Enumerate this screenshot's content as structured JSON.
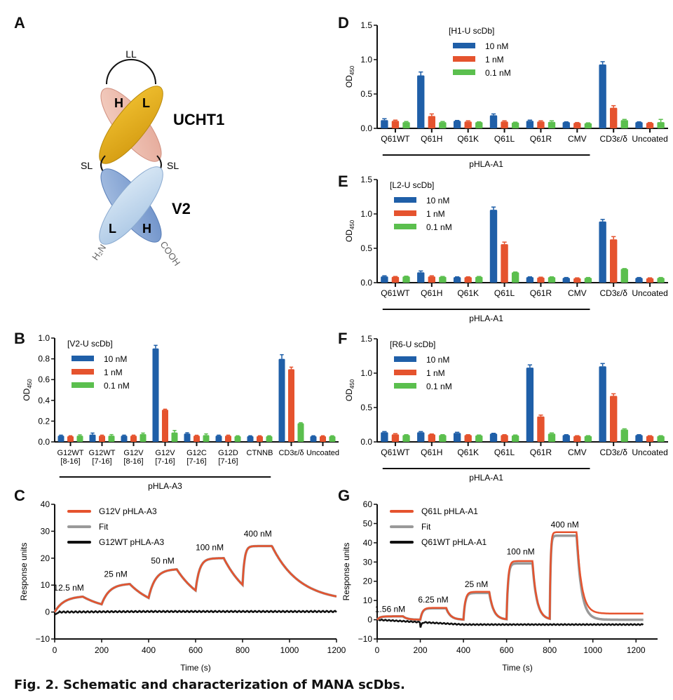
{
  "caption": "Fig. 2. Schematic and characterization of MANA scDbs.",
  "panels": {
    "A": "A",
    "B": "B",
    "C": "C",
    "D": "D",
    "E": "E",
    "F": "F",
    "G": "G"
  },
  "schematic": {
    "top_linker": "LL",
    "side_linker_left": "SL",
    "side_linker_right": "SL",
    "top_domain_name": "UCHT1",
    "bottom_domain_name": "V2",
    "top_H": "H",
    "top_L": "L",
    "bottom_L": "L",
    "bottom_H": "H",
    "n_terminus": "H₂N",
    "c_terminus": "COOH",
    "colors": {
      "ucht1_L": "#e0a81c",
      "ucht1_H": "#eebdab",
      "v2_L": "#c6dcee",
      "v2_H": "#7f9fd0"
    }
  },
  "series_colors": {
    "10 nM": "#1f5fa8",
    "1 nM": "#e5532e",
    "0.1 nM": "#5bbf4e"
  },
  "chart_data": [
    {
      "id": "B",
      "type": "bar",
      "title": "[V2-U scDb]",
      "ylabel": "OD450",
      "ylim": [
        0,
        1.0
      ],
      "yticks": [
        0.0,
        0.2,
        0.4,
        0.6,
        0.8,
        1.0
      ],
      "categories": [
        "G12WT\n[8-16]",
        "G12WT\n[7-16]",
        "G12V\n[8-16]",
        "G12V\n[7-16]",
        "G12C\n[7-16]",
        "G12D\n[7-16]",
        "CTNNB",
        "CD3ε/δ",
        "Uncoated"
      ],
      "group_label": "pHLA-A3",
      "group_span": [
        0,
        6
      ],
      "series": [
        {
          "name": "10 nM",
          "values": [
            0.06,
            0.07,
            0.06,
            0.9,
            0.08,
            0.06,
            0.055,
            0.8,
            0.055
          ],
          "errors": [
            0.005,
            0.015,
            0.005,
            0.03,
            0.008,
            0.005,
            0.004,
            0.04,
            0.004
          ]
        },
        {
          "name": "1 nM",
          "values": [
            0.055,
            0.06,
            0.06,
            0.31,
            0.06,
            0.06,
            0.055,
            0.7,
            0.055
          ],
          "errors": [
            0.004,
            0.005,
            0.005,
            0.005,
            0.004,
            0.005,
            0.004,
            0.02,
            0.004
          ]
        },
        {
          "name": "0.1 nM",
          "values": [
            0.06,
            0.06,
            0.075,
            0.09,
            0.065,
            0.055,
            0.055,
            0.18,
            0.055
          ],
          "errors": [
            0.008,
            0.01,
            0.01,
            0.02,
            0.012,
            0.004,
            0.004,
            0.005,
            0.004
          ]
        }
      ]
    },
    {
      "id": "D",
      "type": "bar",
      "title": "[H1-U scDb]",
      "ylabel": "OD450",
      "ylim": [
        0,
        1.5
      ],
      "yticks": [
        0.0,
        0.5,
        1.0,
        1.5
      ],
      "categories": [
        "Q61WT",
        "Q61H",
        "Q61K",
        "Q61L",
        "Q61R",
        "CMV",
        "CD3ε/δ",
        "Uncoated"
      ],
      "group_label": "pHLA-A1",
      "group_span": [
        0,
        5
      ],
      "series": [
        {
          "name": "10 nM",
          "values": [
            0.12,
            0.77,
            0.11,
            0.19,
            0.11,
            0.09,
            0.93,
            0.09
          ],
          "errors": [
            0.02,
            0.05,
            0.005,
            0.02,
            0.01,
            0.005,
            0.04,
            0.005
          ]
        },
        {
          "name": "1 nM",
          "values": [
            0.11,
            0.18,
            0.1,
            0.1,
            0.1,
            0.08,
            0.3,
            0.08
          ],
          "errors": [
            0.01,
            0.03,
            0.01,
            0.01,
            0.01,
            0.005,
            0.03,
            0.005
          ]
        },
        {
          "name": "0.1 nM",
          "values": [
            0.09,
            0.09,
            0.09,
            0.085,
            0.095,
            0.075,
            0.12,
            0.09
          ],
          "errors": [
            0.01,
            0.01,
            0.005,
            0.005,
            0.015,
            0.005,
            0.01,
            0.04
          ]
        }
      ]
    },
    {
      "id": "E",
      "type": "bar",
      "title": "[L2-U scDb]",
      "ylabel": "OD450",
      "ylim": [
        0,
        1.5
      ],
      "yticks": [
        0.0,
        0.5,
        1.0,
        1.5
      ],
      "categories": [
        "Q61WT",
        "Q61H",
        "Q61K",
        "Q61L",
        "Q61R",
        "CMV",
        "CD3ε/δ",
        "Uncoated"
      ],
      "group_label": "pHLA-A1",
      "group_span": [
        0,
        5
      ],
      "series": [
        {
          "name": "10 nM",
          "values": [
            0.09,
            0.15,
            0.08,
            1.06,
            0.08,
            0.07,
            0.89,
            0.07
          ],
          "errors": [
            0.01,
            0.02,
            0.005,
            0.04,
            0.005,
            0.005,
            0.03,
            0.005
          ]
        },
        {
          "name": "1 nM",
          "values": [
            0.085,
            0.09,
            0.08,
            0.56,
            0.075,
            0.065,
            0.63,
            0.065
          ],
          "errors": [
            0.005,
            0.01,
            0.005,
            0.03,
            0.005,
            0.005,
            0.04,
            0.005
          ]
        },
        {
          "name": "0.1 nM",
          "values": [
            0.09,
            0.085,
            0.085,
            0.15,
            0.08,
            0.07,
            0.2,
            0.07
          ],
          "errors": [
            0.005,
            0.005,
            0.005,
            0.005,
            0.005,
            0.005,
            0.005,
            0.005
          ]
        }
      ]
    },
    {
      "id": "F",
      "type": "bar",
      "title": "[R6-U scDb]",
      "ylabel": "OD450",
      "ylim": [
        0,
        1.5
      ],
      "yticks": [
        0.0,
        0.5,
        1.0,
        1.5
      ],
      "categories": [
        "Q61WT",
        "Q61H",
        "Q61K",
        "Q61L",
        "Q61R",
        "CMV",
        "CD3ε/δ",
        "Uncoated"
      ],
      "group_label": "pHLA-A1",
      "group_span": [
        0,
        5
      ],
      "series": [
        {
          "name": "10 nM",
          "values": [
            0.14,
            0.14,
            0.13,
            0.12,
            1.08,
            0.1,
            1.1,
            0.1
          ],
          "errors": [
            0.01,
            0.01,
            0.01,
            0.005,
            0.04,
            0.005,
            0.04,
            0.005
          ]
        },
        {
          "name": "1 nM",
          "values": [
            0.11,
            0.11,
            0.1,
            0.1,
            0.37,
            0.085,
            0.67,
            0.085
          ],
          "errors": [
            0.01,
            0.005,
            0.005,
            0.005,
            0.02,
            0.005,
            0.03,
            0.005
          ]
        },
        {
          "name": "0.1 nM",
          "values": [
            0.1,
            0.1,
            0.095,
            0.095,
            0.12,
            0.085,
            0.18,
            0.085
          ],
          "errors": [
            0.005,
            0.005,
            0.005,
            0.005,
            0.01,
            0.005,
            0.01,
            0.005
          ]
        }
      ]
    },
    {
      "id": "C",
      "type": "line",
      "xlabel": "Time (s)",
      "ylabel": "Response units",
      "xlim": [
        0,
        1200
      ],
      "ylim": [
        -10,
        40
      ],
      "xticks": [
        0,
        200,
        400,
        600,
        800,
        1000,
        1200
      ],
      "yticks": [
        -10,
        0,
        10,
        20,
        30,
        40
      ],
      "legend": [
        "G12V pHLA-A3",
        "Fit",
        "G12WT pHLA-A3"
      ],
      "annotations": [
        {
          "text": "12.5 nM",
          "x": 60,
          "y": 8
        },
        {
          "text": "25 nM",
          "x": 260,
          "y": 13
        },
        {
          "text": "50 nM",
          "x": 460,
          "y": 18
        },
        {
          "text": "100 nM",
          "x": 660,
          "y": 23
        },
        {
          "text": "400 nM",
          "x": 865,
          "y": 28
        }
      ],
      "injections": [
        {
          "start": 0,
          "end": 120,
          "plateau": 6,
          "ka": 0.025,
          "kd": 0.0085
        },
        {
          "start": 200,
          "end": 320,
          "plateau": 10.6,
          "ka": 0.03,
          "kd": 0.0085
        },
        {
          "start": 400,
          "end": 520,
          "plateau": 16,
          "ka": 0.035,
          "kd": 0.0085
        },
        {
          "start": 600,
          "end": 720,
          "plateau": 20,
          "ka": 0.06,
          "kd": 0.0085
        },
        {
          "start": 800,
          "end": 925,
          "plateau": 24.5,
          "ka": 0.12,
          "kd": 0.0085
        }
      ],
      "baseline_final": 3.8,
      "control_level": 0.2
    },
    {
      "id": "G",
      "type": "line",
      "xlabel": "Time (s)",
      "ylabel": "Response units",
      "xlim": [
        0,
        1300
      ],
      "ylim": [
        -10,
        60
      ],
      "xticks": [
        0,
        200,
        400,
        600,
        800,
        1000,
        1200
      ],
      "yticks": [
        -10,
        0,
        10,
        20,
        30,
        40,
        50,
        60
      ],
      "legend": [
        "Q61L pHLA-A1",
        "Fit",
        "Q61WT pHLA-A1"
      ],
      "annotations": [
        {
          "text": "1.56 nM",
          "x": 60,
          "y": 4
        },
        {
          "text": "6.25 nM",
          "x": 260,
          "y": 9
        },
        {
          "text": "25 nM",
          "x": 460,
          "y": 17
        },
        {
          "text": "100 nM",
          "x": 665,
          "y": 34
        },
        {
          "text": "400 nM",
          "x": 870,
          "y": 48
        }
      ],
      "injections": [
        {
          "start": 0,
          "end": 120,
          "plateau": 1.8,
          "ka": 0.08,
          "kd": 0.05
        },
        {
          "start": 200,
          "end": 320,
          "plateau": 6.2,
          "ka": 0.1,
          "kd": 0.05
        },
        {
          "start": 400,
          "end": 520,
          "plateau": 14.5,
          "ka": 0.12,
          "kd": 0.05
        },
        {
          "start": 600,
          "end": 720,
          "plateau": 30.5,
          "ka": 0.15,
          "kd": 0.05
        },
        {
          "start": 800,
          "end": 925,
          "plateau": 45.5,
          "ka": 0.25,
          "kd": 0.045
        }
      ],
      "baseline_final": 3.2,
      "fit_final": 0,
      "control_level": -2.5
    }
  ]
}
